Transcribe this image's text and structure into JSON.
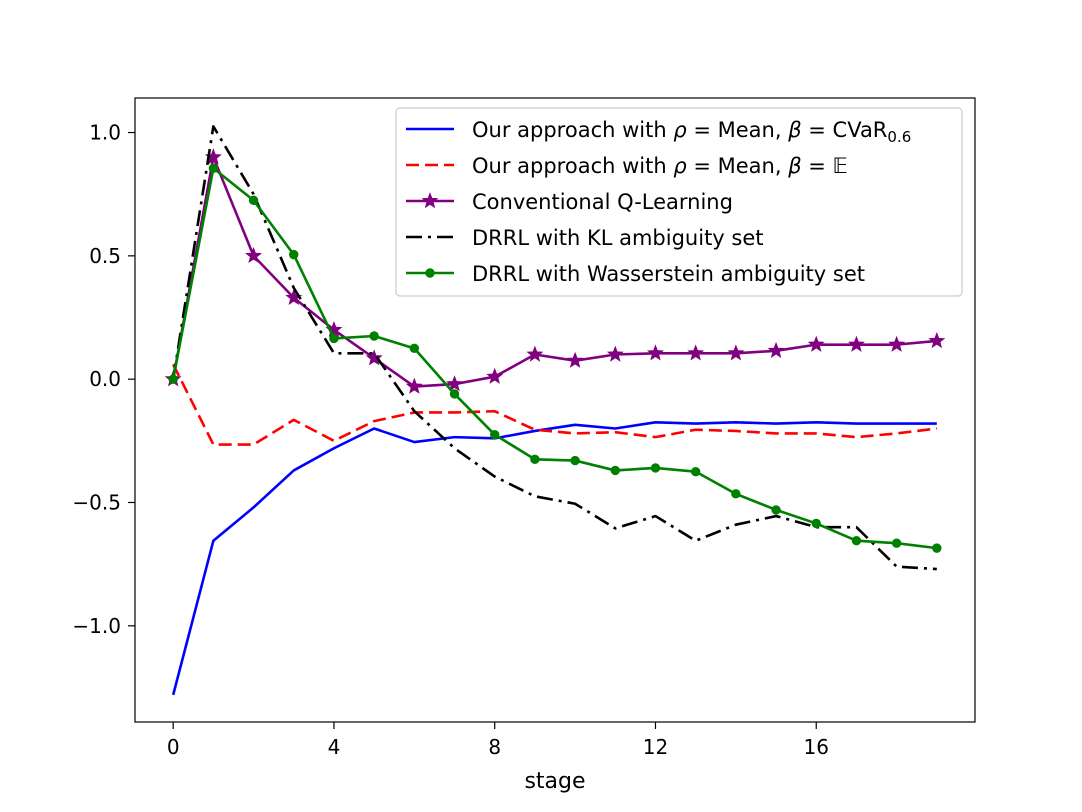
{
  "chart_data": {
    "type": "line",
    "title": "",
    "xlabel": "stage",
    "ylabel": "",
    "xlim": [
      -0.95,
      19.95
    ],
    "ylim": [
      -1.39,
      1.14
    ],
    "xticks": [
      0,
      4,
      8,
      12,
      16
    ],
    "yticks": [
      1.0,
      0.5,
      0.0,
      -0.5,
      -1.0
    ],
    "xtick_labels": [
      "0",
      "4",
      "8",
      "12",
      "16"
    ],
    "ytick_labels": [
      "1.0",
      "0.5",
      "0.0",
      "−0.5",
      "−1.0"
    ],
    "grid": false,
    "legend_position": "top-right",
    "x": [
      0,
      1,
      2,
      3,
      4,
      5,
      6,
      7,
      8,
      9,
      10,
      11,
      12,
      13,
      14,
      15,
      16,
      17,
      18,
      19
    ],
    "series": [
      {
        "name": "Our approach with ρ = Mean, β = CVaR0.6",
        "legend": {
          "prefix": "Our approach with ",
          "rho": "ρ",
          "mid": " = Mean, ",
          "beta": "β",
          "eq": " = CVaR",
          "sub": "0.6",
          "suffix": ""
        },
        "color": "#0000ff",
        "style": "solid",
        "marker": "none",
        "values": [
          -1.28,
          -0.655,
          -0.52,
          -0.37,
          -0.28,
          -0.2,
          -0.255,
          -0.235,
          -0.24,
          -0.21,
          -0.185,
          -0.2,
          -0.175,
          -0.18,
          -0.175,
          -0.18,
          -0.175,
          -0.18,
          -0.18,
          -0.18
        ]
      },
      {
        "name": "Our approach with ρ = Mean, β = 𝔼",
        "legend": {
          "prefix": "Our approach with ",
          "rho": "ρ",
          "mid": " = Mean, ",
          "beta": "β",
          "eq": " = ",
          "sub": "",
          "suffix": "𝔼"
        },
        "color": "#ff0000",
        "style": "dashed",
        "marker": "none",
        "values": [
          0.06,
          -0.265,
          -0.265,
          -0.165,
          -0.25,
          -0.17,
          -0.135,
          -0.135,
          -0.13,
          -0.205,
          -0.22,
          -0.215,
          -0.235,
          -0.205,
          -0.21,
          -0.22,
          -0.22,
          -0.235,
          -0.22,
          -0.2
        ]
      },
      {
        "name": "Conventional Q-Learning",
        "legend": {
          "prefix": "Conventional Q-Learning"
        },
        "color": "#800080",
        "style": "solid",
        "marker": "star",
        "values": [
          0.0,
          0.9,
          0.5,
          0.33,
          0.2,
          0.085,
          -0.03,
          -0.02,
          0.01,
          0.1,
          0.075,
          0.1,
          0.105,
          0.105,
          0.105,
          0.115,
          0.14,
          0.14,
          0.14,
          0.155
        ]
      },
      {
        "name": "DRRL with KL ambiguity set",
        "legend": {
          "prefix": "DRRL with KL ambiguity set"
        },
        "color": "#000000",
        "style": "dashdot",
        "marker": "none",
        "values": [
          0.0,
          1.025,
          0.75,
          0.37,
          0.105,
          0.105,
          -0.13,
          -0.28,
          -0.395,
          -0.475,
          -0.505,
          -0.605,
          -0.555,
          -0.655,
          -0.59,
          -0.555,
          -0.6,
          -0.6,
          -0.76,
          -0.77
        ]
      },
      {
        "name": "DRRL with Wasserstein ambiguity set",
        "legend": {
          "prefix": "DRRL with Wasserstein ambiguity set"
        },
        "color": "#008000",
        "style": "solid",
        "marker": "circle",
        "values": [
          0.0,
          0.855,
          0.725,
          0.505,
          0.165,
          0.175,
          0.125,
          -0.06,
          -0.225,
          -0.325,
          -0.33,
          -0.37,
          -0.36,
          -0.375,
          -0.465,
          -0.53,
          -0.585,
          -0.655,
          -0.665,
          -0.685
        ]
      }
    ]
  }
}
